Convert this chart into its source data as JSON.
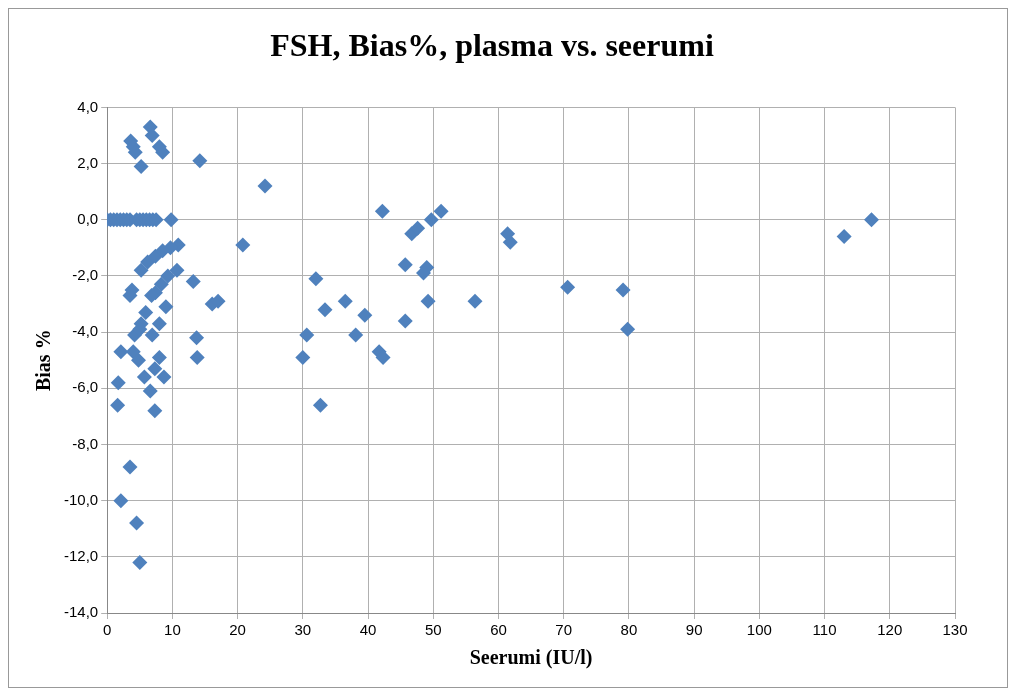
{
  "chart_data": {
    "type": "scatter",
    "title": "FSH, Bias%, plasma vs. seerumi",
    "xlabel": "Seerumi (IU/l)",
    "ylabel": "Bias %",
    "x": [
      3.6,
      6.6,
      6.9,
      8.0,
      8.5,
      4.0,
      4.3,
      5.2,
      14.2,
      24.2,
      0,
      0.5,
      1,
      1.5,
      2,
      2.5,
      3,
      3.5,
      4.5,
      5,
      5.5,
      6,
      6.5,
      7,
      7.5,
      9.8,
      20.8,
      10.9,
      9.7,
      5.2,
      6.2,
      7.4,
      8.5,
      10.7,
      9.3,
      8.3,
      7.4,
      6.8,
      3.8,
      3.5,
      13.2,
      9.0,
      16.1,
      17.0,
      5.9,
      5.2,
      8.0,
      6.9,
      4.2,
      5.0,
      13.7,
      13.8,
      2.1,
      4.0,
      4.8,
      8.0,
      7.3,
      5.7,
      8.7,
      1.7,
      6.6,
      1.6,
      7.3,
      3.5,
      2.1,
      4.5,
      5.0,
      32.0,
      30.0,
      30.6,
      33.4,
      36.5,
      39.5,
      38.1,
      41.7,
      42.3,
      32.7,
      42.2,
      45.7,
      45.7,
      46.7,
      47.6,
      49.7,
      51.2,
      49.0,
      48.5,
      49.2,
      56.4,
      61.4,
      61.8,
      70.6,
      79.1,
      79.8,
      113.0,
      117.2
    ],
    "values": [
      2.8,
      3.3,
      3.0,
      2.6,
      2.4,
      2.6,
      2.4,
      1.9,
      2.1,
      1.2,
      0,
      0,
      0,
      0,
      0,
      0,
      0,
      0,
      0,
      0,
      0,
      0,
      0,
      0,
      0,
      0,
      -0.9,
      -0.9,
      -1.0,
      -1.8,
      -1.5,
      -1.3,
      -1.1,
      -1.8,
      -2.0,
      -2.3,
      -2.6,
      -2.7,
      -2.5,
      -2.7,
      -2.2,
      -3.1,
      -3.0,
      -2.9,
      -3.3,
      -3.7,
      -3.7,
      -4.1,
      -4.1,
      -3.9,
      -4.2,
      -4.9,
      -4.7,
      -4.7,
      -5.0,
      -4.9,
      -5.3,
      -5.6,
      -5.6,
      -5.8,
      -6.1,
      -6.6,
      -6.8,
      -8.8,
      -10.0,
      -10.8,
      -12.2,
      -2.1,
      -4.9,
      -4.1,
      -3.2,
      -2.9,
      -3.4,
      -4.1,
      -4.7,
      -4.9,
      -6.6,
      0.3,
      -1.6,
      -3.6,
      -0.5,
      -0.3,
      0,
      0.3,
      -1.7,
      -1.9,
      -2.9,
      -2.9,
      -0.5,
      -0.8,
      -2.4,
      -2.5,
      -3.9,
      -0.6,
      0
    ],
    "color": "#4f81bd",
    "marker": "diamond",
    "grid": true,
    "xlim": [
      0,
      130
    ],
    "xticks": [
      0,
      10,
      20,
      30,
      40,
      50,
      60,
      70,
      80,
      90,
      100,
      110,
      120,
      130
    ],
    "ylim": [
      -14,
      4
    ],
    "yticks": [
      {
        "value": 4,
        "label": "4,0"
      },
      {
        "value": 2,
        "label": "2,0"
      },
      {
        "value": 0,
        "label": "0,0"
      },
      {
        "value": -2,
        "label": "-2,0"
      },
      {
        "value": -4,
        "label": "-4,0"
      },
      {
        "value": -6,
        "label": "-6,0"
      },
      {
        "value": -8,
        "label": "-8,0"
      },
      {
        "value": -10,
        "label": "-10,0"
      },
      {
        "value": -12,
        "label": "-12,0"
      },
      {
        "value": -14,
        "label": "-14,0"
      }
    ]
  }
}
